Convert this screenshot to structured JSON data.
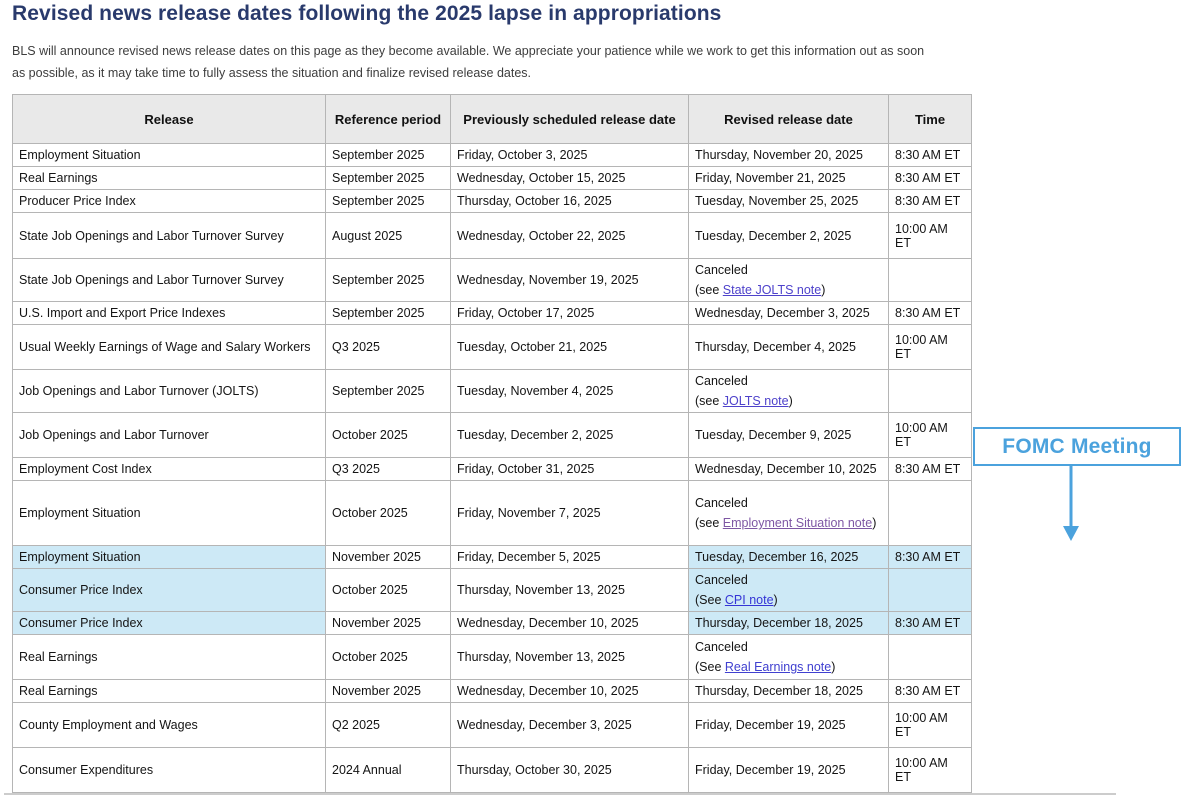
{
  "page": {
    "title": "Revised news release dates following the 2025 lapse in appropriations",
    "intro_line1": "BLS will announce revised news release dates on this page as they become available. We appreciate your patience while we work to get this information out as soon",
    "intro_line2": "as possible, as it may take time to fully assess the situation and finalize revised release dates."
  },
  "colors": {
    "title_color": "#293a6c",
    "highlight": "#cde9f6",
    "accent": "#4ba2dd"
  },
  "annotation": {
    "label": "FOMC Meeting"
  },
  "table": {
    "headers": [
      "Release",
      "Reference period",
      "Previously scheduled release date",
      "Revised release date",
      "Time"
    ],
    "rows": [
      {
        "release": "Employment Situation",
        "period": "September 2025",
        "prev_date": "Friday, October 3, 2025",
        "revised": "Thursday, November 20, 2025",
        "time": "8:30 AM ET",
        "highlighted": false
      },
      {
        "release": "Real Earnings",
        "period": "September 2025",
        "prev_date": "Wednesday, October 15, 2025",
        "revised": "Friday, November 21, 2025",
        "time": "8:30 AM ET",
        "highlighted": false
      },
      {
        "release": "Producer Price Index",
        "period": "September 2025",
        "prev_date": "Thursday, October 16, 2025",
        "revised": "Tuesday, November 25, 2025",
        "time": "8:30 AM ET",
        "highlighted": false
      },
      {
        "release": "State Job Openings and Labor Turnover Survey",
        "period": "August 2025",
        "prev_date": "Wednesday, October 22, 2025",
        "revised": "Tuesday, December 2, 2025",
        "time": "10:00 AM ET",
        "highlighted": false
      },
      {
        "release": "State Job Openings and Labor Turnover Survey",
        "period": "September 2025",
        "prev_date": "Wednesday, November 19, 2025",
        "revised": {
          "line1": "Canceled",
          "pre": "(see ",
          "link": "State JOLTS note",
          "post": ")",
          "link_color": "#4e42cb"
        },
        "time": "",
        "highlighted": false
      },
      {
        "release": "U.S. Import and Export Price Indexes",
        "period": "September 2025",
        "prev_date": "Friday, October 17, 2025",
        "revised": "Wednesday, December 3, 2025",
        "time": "8:30 AM ET",
        "highlighted": false
      },
      {
        "release": "Usual Weekly Earnings of Wage and Salary Workers",
        "period": "Q3 2025",
        "prev_date": "Tuesday, October 21, 2025",
        "revised": "Thursday, December 4, 2025",
        "time": "10:00 AM ET",
        "highlighted": false
      },
      {
        "release": "Job Openings and Labor Turnover (JOLTS)",
        "period": "September 2025",
        "prev_date": "Tuesday, November 4, 2025",
        "revised": {
          "line1": "Canceled",
          "pre": "(see ",
          "link": "JOLTS note",
          "post": ")",
          "link_color": "#4e42cb"
        },
        "time": "",
        "highlighted": false
      },
      {
        "release": "Job Openings and Labor Turnover",
        "period": "October 2025",
        "prev_date": "Tuesday, December 2, 2025",
        "revised": "Tuesday, December 9, 2025",
        "time": "10:00 AM ET",
        "highlighted": false
      },
      {
        "release": "Employment Cost Index",
        "period": "Q3 2025",
        "prev_date": "Friday, October 31, 2025",
        "revised": "Wednesday, December 10, 2025",
        "time": "8:30 AM ET",
        "highlighted": false
      },
      {
        "release": "Employment Situation",
        "period": "October 2025",
        "prev_date": "Friday, November 7, 2025",
        "revised": {
          "line1": "Canceled",
          "pre": "(see ",
          "link": "Employment Situation note",
          "post": ")",
          "link_color": "#7e57a4"
        },
        "time": "",
        "highlighted": false
      },
      {
        "release": "Employment Situation",
        "period": "November 2025",
        "prev_date": "Friday, December 5, 2025",
        "revised": "Tuesday, December 16, 2025",
        "time": "8:30 AM ET",
        "highlighted": true
      },
      {
        "release": "Consumer Price Index",
        "period": "October 2025",
        "prev_date": "Thursday, November 13, 2025",
        "revised": {
          "line1": "Canceled",
          "pre": "(See ",
          "link": "CPI note",
          "post": ")",
          "link_color": "#3434d6"
        },
        "time": "",
        "highlighted": true
      },
      {
        "release": "Consumer Price Index",
        "period": "November 2025",
        "prev_date": "Wednesday, December 10, 2025",
        "revised": "Thursday, December 18, 2025",
        "time": "8:30 AM ET",
        "highlighted": true
      },
      {
        "release": "Real Earnings",
        "period": "October 2025",
        "prev_date": "Thursday, November 13, 2025",
        "revised": {
          "line1": "Canceled",
          "pre": "(See ",
          "link": "Real Earnings note",
          "post": ")",
          "link_color": "#4040d0"
        },
        "time": "",
        "highlighted": false
      },
      {
        "release": "Real Earnings",
        "period": "November 2025",
        "prev_date": "Wednesday, December 10, 2025",
        "revised": "Thursday, December 18, 2025",
        "time": "8:30 AM ET",
        "highlighted": false
      },
      {
        "release": "County Employment and Wages",
        "period": "Q2 2025",
        "prev_date": "Wednesday, December 3, 2025",
        "revised": "Friday, December 19, 2025",
        "time": "10:00 AM ET",
        "highlighted": false
      },
      {
        "release": "Consumer Expenditures",
        "period": "2024 Annual",
        "prev_date": "Thursday, October 30, 2025",
        "revised": "Friday, December 19, 2025",
        "time": "10:00 AM ET",
        "highlighted": false
      }
    ]
  }
}
